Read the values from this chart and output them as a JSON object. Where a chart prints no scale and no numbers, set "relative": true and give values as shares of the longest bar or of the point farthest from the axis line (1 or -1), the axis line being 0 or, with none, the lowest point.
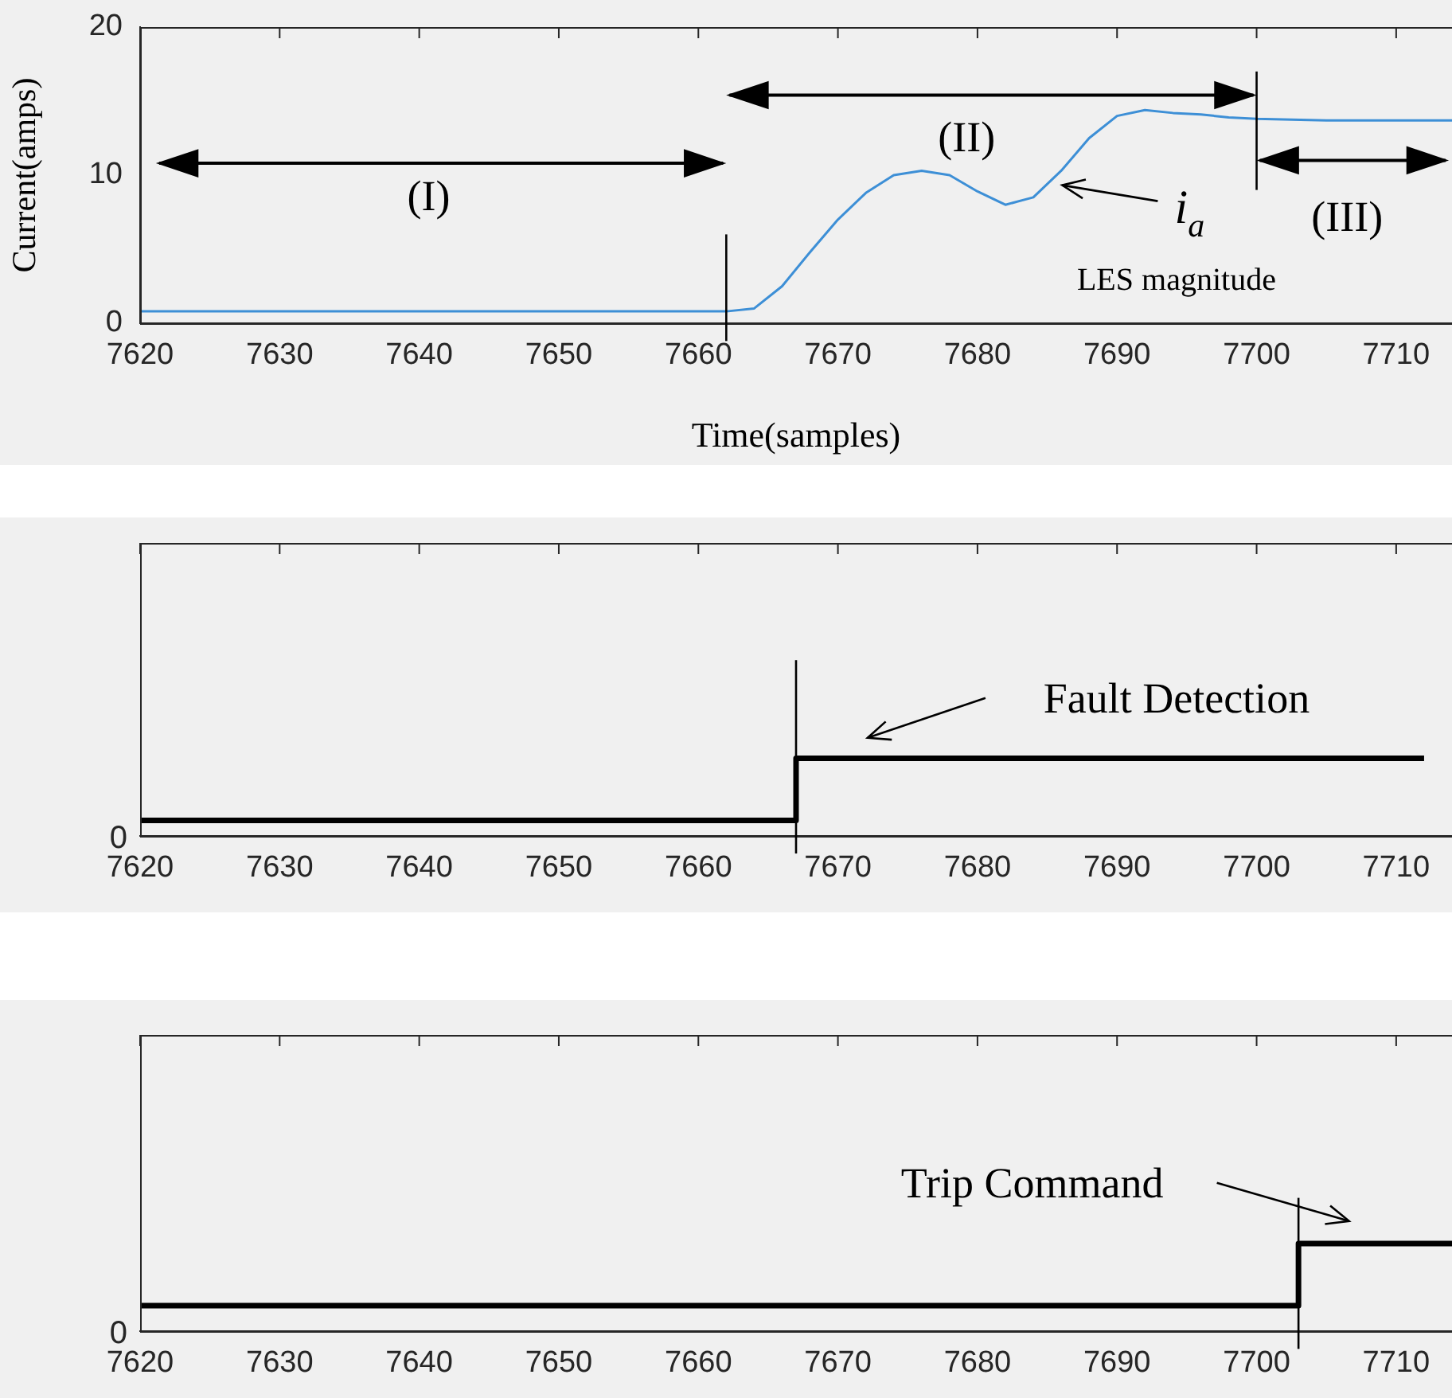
{
  "chart_data": [
    {
      "type": "line",
      "xlabel": "Time(samples)",
      "ylabel": "Current(amps)",
      "xlim": [
        7620,
        7714
      ],
      "xticks": [
        7620,
        7630,
        7640,
        7650,
        7660,
        7670,
        7680,
        7690,
        7700,
        7710
      ],
      "ylim": [
        0,
        20
      ],
      "yticks": [
        0,
        10,
        20
      ],
      "grid": false,
      "legend": false,
      "marker": "none",
      "series": [
        {
          "color": "#3d8fd6",
          "x": [
            7620,
            7640,
            7662,
            7664,
            7666,
            7668,
            7670,
            7672,
            7674,
            7676,
            7678,
            7680,
            7682,
            7684,
            7686,
            7688,
            7690,
            7692,
            7694,
            7696,
            7698,
            7700,
            7705,
            7714
          ],
          "values": [
            0.8,
            0.8,
            0.8,
            1.0,
            2.5,
            4.8,
            7.0,
            8.8,
            10.0,
            10.3,
            10.0,
            8.9,
            8.0,
            8.5,
            10.3,
            12.5,
            14.0,
            14.4,
            14.2,
            14.1,
            13.9,
            13.8,
            13.7,
            13.7
          ]
        }
      ],
      "ref_lines": [
        {
          "axis": "x",
          "value": 7662,
          "color": "#000000"
        },
        {
          "axis": "x",
          "value": 7700,
          "color": "#000000"
        }
      ],
      "annotations": [
        "(I)",
        "(II)",
        "(III)",
        "i$_{a}$",
        "LES magnitude"
      ]
    },
    {
      "type": "line",
      "relative": true,
      "xlim": [
        7620,
        7714
      ],
      "xticks": [
        7620,
        7630,
        7640,
        7650,
        7660,
        7670,
        7680,
        7690,
        7700,
        7710
      ],
      "grid": false,
      "legend": false,
      "marker": "none",
      "series": [
        {
          "color": "#000000",
          "x": [
            7620,
            7667,
            7667,
            7712
          ],
          "values": [
            0.2,
            0.2,
            1,
            1
          ]
        }
      ],
      "ref_lines": [
        {
          "axis": "x",
          "value": 7667,
          "color": "#000000"
        }
      ],
      "annotations": [
        "0",
        "Fault Detection"
      ]
    },
    {
      "type": "line",
      "relative": true,
      "xlim": [
        7620,
        7714
      ],
      "xticks": [
        7620,
        7630,
        7640,
        7650,
        7660,
        7670,
        7680,
        7690,
        7700,
        7710
      ],
      "grid": false,
      "legend": false,
      "marker": "none",
      "series": [
        {
          "color": "#000000",
          "x": [
            7620,
            7703,
            7703,
            7714
          ],
          "values": [
            0.29,
            0.29,
            1,
            1
          ]
        }
      ],
      "ref_lines": [
        {
          "axis": "x",
          "value": 7703,
          "color": "#000000"
        }
      ],
      "annotations": [
        "0",
        "Trip Command"
      ]
    }
  ]
}
